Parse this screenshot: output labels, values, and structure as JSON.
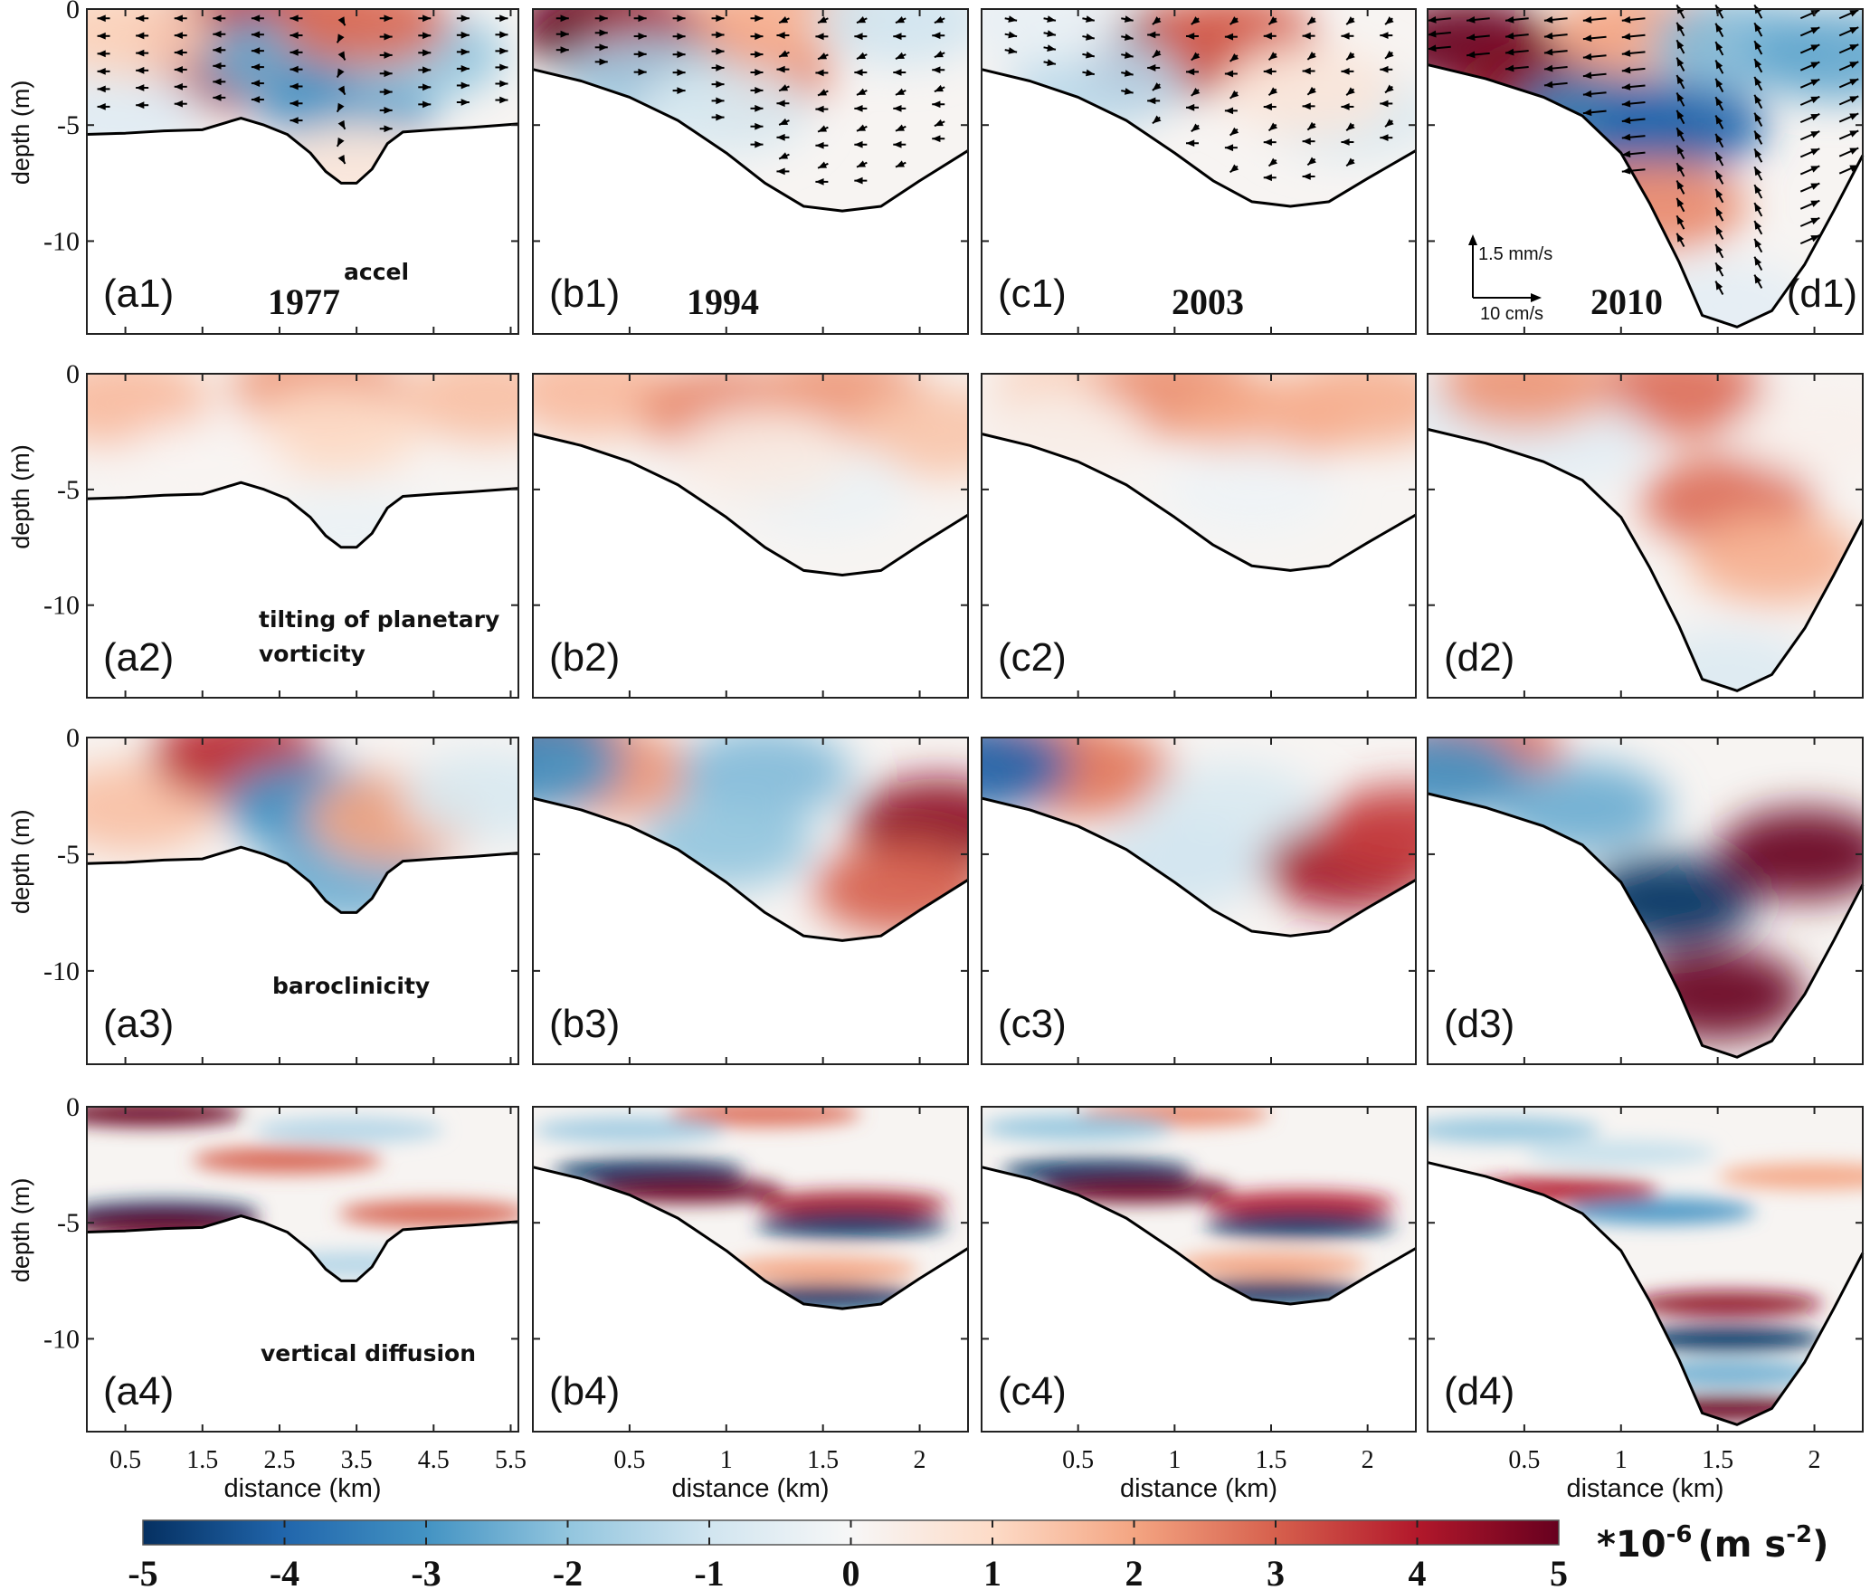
{
  "chart_data": {
    "type": "heatmap",
    "title": "",
    "description": "4x4 grid of cross-section panels of momentum-balance terms (depth vs distance) for four years, with flow vectors in row 1",
    "ylabel": "depth (m)",
    "xlabel": "distance (km)",
    "ylim": [
      -14,
      0
    ],
    "yticks": [
      0,
      -5,
      -10
    ],
    "ytick_labels": [
      "0",
      "-5",
      "-10"
    ],
    "grid": false,
    "years": [
      "1977",
      "1994",
      "2003",
      "2010"
    ],
    "terms": [
      "accel",
      "tilting of planetary vorticity",
      "baroclinicity",
      "vertical diffusion"
    ],
    "columns": [
      {
        "key": "a",
        "year": "1977",
        "xlim": [
          0,
          5.6
        ],
        "xticks": [
          0.5,
          1.5,
          2.5,
          3.5,
          4.5,
          5.5
        ],
        "xtick_labels": [
          "0.5",
          "1.5",
          "2.5",
          "3.5",
          "4.5",
          "5.5"
        ],
        "bathymetry": {
          "x": [
            0,
            0.5,
            1.0,
            1.5,
            1.8,
            2.0,
            2.3,
            2.6,
            2.9,
            3.1,
            3.3,
            3.5,
            3.7,
            3.9,
            4.1,
            4.5,
            5.0,
            5.6
          ],
          "depth": [
            -5.4,
            -5.35,
            -5.25,
            -5.2,
            -4.9,
            -4.7,
            -5.0,
            -5.4,
            -6.2,
            -7.0,
            -7.5,
            -7.5,
            -6.9,
            -5.8,
            -5.3,
            -5.2,
            -5.1,
            -4.95
          ]
        }
      },
      {
        "key": "b",
        "year": "1994",
        "xlim": [
          0,
          2.25
        ],
        "xticks": [
          0.5,
          1,
          1.5,
          2
        ],
        "xtick_labels": [
          "0.5",
          "1",
          "1.5",
          "2"
        ],
        "bathymetry": {
          "x": [
            0,
            0.25,
            0.5,
            0.75,
            1.0,
            1.2,
            1.4,
            1.6,
            1.8,
            2.0,
            2.25
          ],
          "depth": [
            -2.6,
            -3.1,
            -3.8,
            -4.8,
            -6.2,
            -7.5,
            -8.5,
            -8.7,
            -8.5,
            -7.4,
            -6.1
          ]
        }
      },
      {
        "key": "c",
        "year": "2003",
        "xlim": [
          0,
          2.25
        ],
        "xticks": [
          0.5,
          1,
          1.5,
          2
        ],
        "xtick_labels": [
          "0.5",
          "1",
          "1.5",
          "2"
        ],
        "bathymetry": {
          "x": [
            0,
            0.25,
            0.5,
            0.75,
            1.0,
            1.2,
            1.4,
            1.6,
            1.8,
            2.0,
            2.25
          ],
          "depth": [
            -2.6,
            -3.1,
            -3.8,
            -4.8,
            -6.2,
            -7.4,
            -8.3,
            -8.5,
            -8.3,
            -7.3,
            -6.1
          ]
        }
      },
      {
        "key": "d",
        "year": "2010",
        "xlim": [
          0,
          2.25
        ],
        "xticks": [
          0.5,
          1,
          1.5,
          2
        ],
        "xtick_labels": [
          "0.5",
          "1",
          "1.5",
          "2"
        ],
        "bathymetry": {
          "x": [
            0,
            0.3,
            0.6,
            0.8,
            1.0,
            1.15,
            1.3,
            1.42,
            1.6,
            1.78,
            1.95,
            2.1,
            2.25
          ],
          "depth": [
            -2.4,
            -3.0,
            -3.8,
            -4.6,
            -6.2,
            -8.4,
            -10.9,
            -13.2,
            -13.7,
            -13.0,
            -11.0,
            -8.7,
            -6.3
          ]
        }
      }
    ],
    "panels": [
      {
        "id": "a1",
        "label": "(a1)",
        "column": "a",
        "row": 1,
        "term": "accel",
        "year_label": "1977",
        "fields": [
          {
            "x": 1.9,
            "z": -0.8,
            "v": 4.2
          },
          {
            "x": 2.6,
            "z": -0.5,
            "v": 3.5
          },
          {
            "x": 1.8,
            "z": -2.5,
            "v": 3.8
          },
          {
            "x": 2.6,
            "z": -2.2,
            "v": -2.5
          },
          {
            "x": 3.4,
            "z": -4.2,
            "v": -3.0
          },
          {
            "x": 4.3,
            "z": -2.0,
            "v": -2.0
          },
          {
            "x": 3.6,
            "z": -0.6,
            "v": 2.8
          },
          {
            "x": 0.4,
            "z": -4.5,
            "v": -0.6
          },
          {
            "x": 0.5,
            "z": -1.0,
            "v": 1.2
          },
          {
            "x": 3.5,
            "z": -6.8,
            "v": 0.6
          }
        ]
      },
      {
        "id": "b1",
        "label": "(b1)",
        "column": "b",
        "row": 1,
        "term": "",
        "year_label": "1994",
        "fields": [
          {
            "x": 0.35,
            "z": -0.7,
            "v": 5
          },
          {
            "x": 0.7,
            "z": -1.6,
            "v": 3.8
          },
          {
            "x": 1.1,
            "z": -2.8,
            "v": 2.6
          },
          {
            "x": 0.6,
            "z": -3.1,
            "v": -1.8
          },
          {
            "x": 1.3,
            "z": -0.3,
            "v": 1.8
          },
          {
            "x": 1.9,
            "z": -0.5,
            "v": -1.0
          },
          {
            "x": 1.0,
            "z": -4.4,
            "v": -0.8
          }
        ]
      },
      {
        "id": "c1",
        "label": "(c1)",
        "column": "c",
        "row": 1,
        "term": "",
        "year_label": "2003",
        "fields": [
          {
            "x": 0.95,
            "z": -1.9,
            "v": 4.6
          },
          {
            "x": 1.3,
            "z": -1.3,
            "v": 3.0
          },
          {
            "x": 0.6,
            "z": -3.2,
            "v": -1.4
          },
          {
            "x": 1.9,
            "z": -4.5,
            "v": -0.8
          },
          {
            "x": 1.7,
            "z": -3.5,
            "v": 0.6
          },
          {
            "x": 0.3,
            "z": -0.5,
            "v": -0.4
          }
        ]
      },
      {
        "id": "d1",
        "label": "(d1)",
        "column": "d",
        "row": 1,
        "term": "",
        "year_label": "2010",
        "fields": [
          {
            "x": 0.2,
            "z": -1.5,
            "v": 5
          },
          {
            "x": 0.6,
            "z": -3.4,
            "v": 4.6
          },
          {
            "x": 1.0,
            "z": -5.5,
            "v": 3.2
          },
          {
            "x": 0.9,
            "z": -4.6,
            "v": -3.4
          },
          {
            "x": 1.3,
            "z": -5.0,
            "v": -4.0
          },
          {
            "x": 1.2,
            "z": -8.5,
            "v": 2.4
          },
          {
            "x": 1.1,
            "z": -1.0,
            "v": 2.0
          },
          {
            "x": 1.6,
            "z": -1.5,
            "v": -2.2
          },
          {
            "x": 2.1,
            "z": -2.0,
            "v": -2.6
          },
          {
            "x": 1.55,
            "z": -12.8,
            "v": -0.5
          }
        ]
      },
      {
        "id": "a2",
        "label": "(a2)",
        "column": "a",
        "row": 2,
        "term": "tilting of planetary vorticity",
        "fields": [
          {
            "x": 0.5,
            "z": -1.2,
            "v": 1.6
          },
          {
            "x": 3.0,
            "z": -0.6,
            "v": 2.2
          },
          {
            "x": 5.2,
            "z": -1.0,
            "v": 1.5
          },
          {
            "x": 3.2,
            "z": -2.5,
            "v": 1.0
          },
          {
            "x": 1.5,
            "z": -4.0,
            "v": 0.1
          },
          {
            "x": 3.4,
            "z": -6.8,
            "v": -0.3
          }
        ]
      },
      {
        "id": "b2",
        "label": "(b2)",
        "column": "b",
        "row": 2,
        "term": "",
        "fields": [
          {
            "x": 0.3,
            "z": -0.8,
            "v": 1.6
          },
          {
            "x": 1.0,
            "z": -1.6,
            "v": 2.4
          },
          {
            "x": 1.6,
            "z": -1.0,
            "v": 2.2
          },
          {
            "x": 2.1,
            "z": -2.5,
            "v": 1.4
          },
          {
            "x": 1.5,
            "z": -5.0,
            "v": -0.3
          },
          {
            "x": 1.2,
            "z": -3.5,
            "v": 0.4
          }
        ]
      },
      {
        "id": "c2",
        "label": "(c2)",
        "column": "c",
        "row": 2,
        "term": "",
        "fields": [
          {
            "x": 0.5,
            "z": -1.0,
            "v": 1.3
          },
          {
            "x": 1.0,
            "z": -0.8,
            "v": 2.3
          },
          {
            "x": 1.5,
            "z": -2.0,
            "v": 1.9
          },
          {
            "x": 2.0,
            "z": -1.2,
            "v": 1.8
          },
          {
            "x": 1.4,
            "z": -5.0,
            "v": -0.2
          },
          {
            "x": 0.4,
            "z": -2.6,
            "v": 0.3
          }
        ]
      },
      {
        "id": "d2",
        "label": "(d2)",
        "column": "d",
        "row": 2,
        "term": "",
        "fields": [
          {
            "x": 1.3,
            "z": -0.8,
            "v": 2.8
          },
          {
            "x": 0.3,
            "z": -1.6,
            "v": -0.6
          },
          {
            "x": 0.7,
            "z": -3.0,
            "v": -0.5
          },
          {
            "x": 1.55,
            "z": -5.5,
            "v": 2.8
          },
          {
            "x": 2.05,
            "z": -2.5,
            "v": 0.2
          },
          {
            "x": 1.8,
            "z": -8.0,
            "v": 1.8
          },
          {
            "x": 1.55,
            "z": -13.0,
            "v": -0.7
          },
          {
            "x": 0.5,
            "z": -0.5,
            "v": 2.2
          }
        ]
      },
      {
        "id": "a3",
        "label": "(a3)",
        "column": "a",
        "row": 3,
        "term": "baroclinicity",
        "fields": [
          {
            "x": 0.6,
            "z": -3.0,
            "v": 1.5
          },
          {
            "x": 1.95,
            "z": -0.8,
            "v": 3.8
          },
          {
            "x": 2.9,
            "z": -3.0,
            "v": -3.0
          },
          {
            "x": 3.4,
            "z": -6.0,
            "v": -2.5
          },
          {
            "x": 4.0,
            "z": -3.5,
            "v": 2.0
          },
          {
            "x": 5.2,
            "z": -2.5,
            "v": -0.8
          }
        ]
      },
      {
        "id": "b3",
        "label": "(b3)",
        "column": "b",
        "row": 3,
        "term": "",
        "fields": [
          {
            "x": 0.1,
            "z": -0.5,
            "v": 4.6
          },
          {
            "x": 0.4,
            "z": -1.5,
            "v": 2.2
          },
          {
            "x": 1.2,
            "z": -1.5,
            "v": -2.2
          },
          {
            "x": 1.0,
            "z": -4.5,
            "v": -2.0
          },
          {
            "x": 2.1,
            "z": -3.7,
            "v": 4.5
          },
          {
            "x": 1.9,
            "z": -6.5,
            "v": 3.0
          },
          {
            "x": 0.02,
            "z": -1.2,
            "v": -3.0
          }
        ]
      },
      {
        "id": "c3",
        "label": "(c3)",
        "column": "c",
        "row": 3,
        "term": "",
        "fields": [
          {
            "x": 0.3,
            "z": -0.8,
            "v": 2.4
          },
          {
            "x": 0.55,
            "z": -1.5,
            "v": 2.6
          },
          {
            "x": 1.3,
            "z": -3.0,
            "v": -0.8
          },
          {
            "x": 1.9,
            "z": -5.5,
            "v": 4.2
          },
          {
            "x": 2.2,
            "z": -4.0,
            "v": 3.5
          },
          {
            "x": 0.02,
            "z": -1.2,
            "v": -4.0
          },
          {
            "x": 1.0,
            "z": -5.5,
            "v": -1.0
          }
        ]
      },
      {
        "id": "d3",
        "label": "(d3)",
        "column": "d",
        "row": 3,
        "term": "",
        "fields": [
          {
            "x": 0.25,
            "z": -0.6,
            "v": 2.8
          },
          {
            "x": 0.8,
            "z": -3.0,
            "v": -2.5
          },
          {
            "x": 1.25,
            "z": -7.0,
            "v": -5
          },
          {
            "x": 1.95,
            "z": -5.0,
            "v": 5
          },
          {
            "x": 1.5,
            "z": -11.0,
            "v": 5
          },
          {
            "x": 0.05,
            "z": -1.5,
            "v": -3.0
          }
        ]
      },
      {
        "id": "a4",
        "label": "(a4)",
        "column": "a",
        "row": 4,
        "term": "vertical diffusion",
        "fields": [
          {
            "x": 0.8,
            "z": -0.3,
            "v": 5
          },
          {
            "x": 2.6,
            "z": -2.3,
            "v": 3.0
          },
          {
            "x": 3.4,
            "z": -1.0,
            "v": -1.5
          },
          {
            "x": 1.0,
            "z": -4.6,
            "v": -5
          },
          {
            "x": 1.0,
            "z": -5.1,
            "v": 5
          },
          {
            "x": 3.5,
            "z": -6.8,
            "v": -1.5
          },
          {
            "x": 4.5,
            "z": -4.6,
            "v": 3.0
          }
        ]
      },
      {
        "id": "b4",
        "label": "(b4)",
        "column": "b",
        "row": 4,
        "term": "",
        "fields": [
          {
            "x": 1.2,
            "z": -0.3,
            "v": 2.8
          },
          {
            "x": 0.5,
            "z": -1.0,
            "v": -1.8
          },
          {
            "x": 0.6,
            "z": -2.8,
            "v": -5
          },
          {
            "x": 0.8,
            "z": -3.6,
            "v": 5
          },
          {
            "x": 1.65,
            "z": -4.2,
            "v": 4.2
          },
          {
            "x": 1.65,
            "z": -5.1,
            "v": -5
          },
          {
            "x": 1.5,
            "z": -7.0,
            "v": 2.0
          },
          {
            "x": 1.5,
            "z": -8.2,
            "v": -5
          }
        ]
      },
      {
        "id": "c4",
        "label": "(c4)",
        "column": "c",
        "row": 4,
        "term": "",
        "fields": [
          {
            "x": 1.0,
            "z": -0.3,
            "v": 2.4
          },
          {
            "x": 0.5,
            "z": -0.9,
            "v": -2.0
          },
          {
            "x": 0.6,
            "z": -2.8,
            "v": -5
          },
          {
            "x": 0.8,
            "z": -3.6,
            "v": 5
          },
          {
            "x": 1.65,
            "z": -4.2,
            "v": 4.0
          },
          {
            "x": 1.65,
            "z": -5.1,
            "v": -5
          },
          {
            "x": 1.5,
            "z": -6.8,
            "v": 2.0
          },
          {
            "x": 1.5,
            "z": -8.0,
            "v": -5
          }
        ]
      },
      {
        "id": "d4",
        "label": "(d4)",
        "column": "d",
        "row": 4,
        "term": "",
        "fields": [
          {
            "x": 0.4,
            "z": -1.0,
            "v": -2.0
          },
          {
            "x": 1.0,
            "z": -2.0,
            "v": -1.2
          },
          {
            "x": 0.7,
            "z": -3.6,
            "v": 4.0
          },
          {
            "x": 1.55,
            "z": -8.5,
            "v": 4.5
          },
          {
            "x": 1.55,
            "z": -10.0,
            "v": -5
          },
          {
            "x": 1.55,
            "z": -11.5,
            "v": -2.5
          },
          {
            "x": 1.55,
            "z": -13.0,
            "v": 5
          },
          {
            "x": 1.2,
            "z": -4.5,
            "v": -3.0
          },
          {
            "x": 2.0,
            "z": -3.0,
            "v": 2.0
          }
        ]
      }
    ],
    "vector_scale": {
      "vertical": "1.5 mm/s",
      "horizontal": "10 cm/s"
    },
    "colorbar": {
      "min": -5,
      "max": 5,
      "ticks": [
        -5,
        -4,
        -3,
        -2,
        -1,
        0,
        1,
        2,
        3,
        4,
        5
      ],
      "tick_labels": [
        "-5",
        "-4",
        "-3",
        "-2",
        "-1",
        "0",
        "1",
        "2",
        "3",
        "4",
        "5"
      ],
      "unit_prefix": "*10",
      "unit_exp": "-6",
      "unit_body": "(m s",
      "unit_exp2": "-2",
      "unit_close": ")",
      "colormap": "RdBu_r",
      "stops": [
        "#053061",
        "#2166ac",
        "#4393c3",
        "#92c5de",
        "#d1e5f0",
        "#f7f7f7",
        "#fddbc7",
        "#f4a582",
        "#d6604d",
        "#b2182b",
        "#67001f"
      ],
      "placement": "bottom"
    }
  }
}
